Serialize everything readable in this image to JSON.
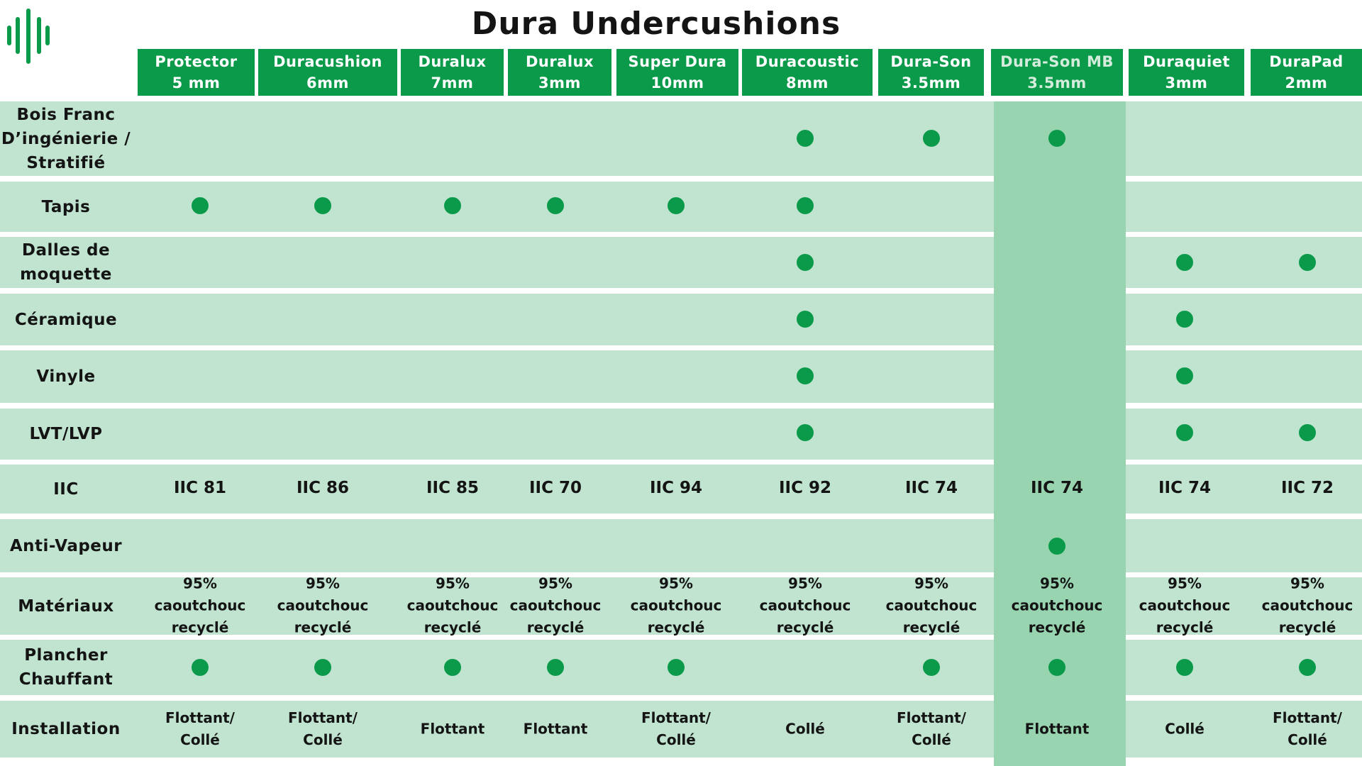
{
  "title": "Dura Undercushions",
  "logo_icon": "green-stripes-logo",
  "colors": {
    "brand_green": "#0a9a4a",
    "band": "#c0e4d0",
    "highlight_column": "#98d4b0"
  },
  "products": [
    {
      "name": "Protector",
      "size": "5 mm"
    },
    {
      "name": "Duracushion",
      "size": "6mm"
    },
    {
      "name": "Duralux",
      "size": "7mm"
    },
    {
      "name": "Duralux",
      "size": "3mm"
    },
    {
      "name": "Super Dura",
      "size": "10mm"
    },
    {
      "name": "Duracoustic",
      "size": "8mm"
    },
    {
      "name": "Dura-Son",
      "size": "3.5mm"
    },
    {
      "name": "Dura-Son MB",
      "size": "3.5mm"
    },
    {
      "name": "Duraquiet",
      "size": "3mm"
    },
    {
      "name": "DuraPad",
      "size": "2mm"
    }
  ],
  "highlighted_product": "Dura-Son MB",
  "rows": [
    {
      "label": [
        "Bois Franc",
        "D’ingénierie /",
        "Stratifié"
      ],
      "marks": [
        false,
        false,
        false,
        false,
        false,
        true,
        true,
        true,
        false,
        false
      ]
    },
    {
      "label": [
        "Tapis"
      ],
      "marks": [
        true,
        true,
        true,
        true,
        true,
        true,
        false,
        false,
        false,
        false
      ]
    },
    {
      "label": [
        "Dalles de",
        "moquette"
      ],
      "marks": [
        false,
        false,
        false,
        false,
        false,
        true,
        false,
        false,
        true,
        true
      ]
    },
    {
      "label": [
        "Céramique"
      ],
      "marks": [
        false,
        false,
        false,
        false,
        false,
        true,
        false,
        false,
        true,
        false
      ]
    },
    {
      "label": [
        "Vinyle"
      ],
      "marks": [
        false,
        false,
        false,
        false,
        false,
        true,
        false,
        false,
        true,
        false
      ]
    },
    {
      "label": [
        "LVT/LVP"
      ],
      "marks": [
        false,
        false,
        false,
        false,
        false,
        true,
        false,
        false,
        true,
        true
      ]
    },
    {
      "label": [
        "IIC"
      ],
      "values": [
        "IIC 81",
        "IIC 86",
        "IIC 85",
        "IIC 70",
        "IIC 94",
        "IIC 92",
        "IIC 74",
        "IIC 74",
        "IIC 74",
        "IIC 72"
      ]
    },
    {
      "label": [
        "Anti-Vapeur"
      ],
      "marks": [
        false,
        false,
        false,
        false,
        false,
        false,
        false,
        true,
        false,
        false
      ]
    },
    {
      "label": [
        "Matériaux"
      ],
      "values": [
        "95%|caoutchouc|recyclé",
        "95%|caoutchouc|recyclé",
        "95%|caoutchouc|recyclé",
        "95%|caoutchouc|recyclé",
        "95%|caoutchouc|recyclé",
        "95%|caoutchouc|recyclé",
        "95%|caoutchouc|recyclé",
        "95%|caoutchouc|recyclé",
        "95%|caoutchouc|recyclé",
        "95%|caoutchouc|recyclé"
      ]
    },
    {
      "label": [
        "Plancher",
        "Chauffant"
      ],
      "marks": [
        true,
        true,
        true,
        true,
        true,
        false,
        true,
        true,
        true,
        true
      ]
    },
    {
      "label": [
        "Installation"
      ],
      "values": [
        "Flottant/|Collé",
        "Flottant/|Collé",
        "Flottant",
        "Flottant",
        "Flottant/|Collé",
        "Collé",
        "Flottant/|Collé",
        "Flottant",
        "Collé",
        "Flottant/|Collé"
      ]
    }
  ]
}
